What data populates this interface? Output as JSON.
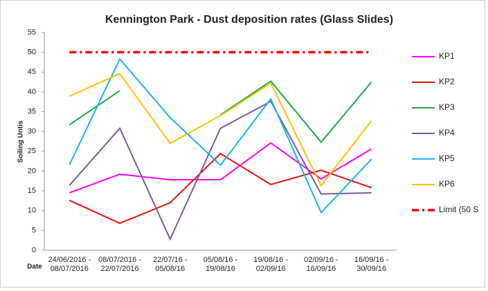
{
  "chart_data": {
    "type": "line",
    "title": "Kennington Park - Dust deposition rates (Glass Slides)",
    "y_label": "Soiling Untis",
    "x_label": "Date",
    "categories": [
      "24/06/2016 -\n08/07/2016",
      "08/07/2016 -\n22/07/2016",
      "22/07/16 -\n05/08/16",
      "05/08/16 -\n19/08/16",
      "19/08/16 -\n02/09/16",
      "02/09/16 -\n16/09/16",
      "16/09/16 -\n30/09/16"
    ],
    "series": [
      {
        "name": "KP1",
        "color": "#ff00ff",
        "values": [
          14.5,
          19.2,
          17.8,
          17.8,
          27.1,
          18,
          25.6
        ]
      },
      {
        "name": "KP2",
        "color": "#e3120b",
        "values": [
          12.6,
          6.8,
          12,
          24.4,
          16.6,
          20.2,
          15.8
        ]
      },
      {
        "name": "KP3",
        "color": "#1fa846",
        "values": [
          31.7,
          40.3,
          null,
          34.2,
          42.7,
          27.3,
          42.5
        ]
      },
      {
        "name": "KP4",
        "color": "#7a5a9a",
        "values": [
          16.4,
          30.8,
          2.8,
          30.8,
          37.6,
          14.2,
          14.5
        ]
      },
      {
        "name": "KP5",
        "color": "#1ab2e8",
        "values": [
          21.6,
          48.3,
          33.5,
          21.5,
          38.2,
          9.5,
          23
        ]
      },
      {
        "name": "KP6",
        "color": "#ffc000",
        "values": [
          38.9,
          44.6,
          27,
          34,
          42.2,
          16.3,
          32.7
        ]
      },
      {
        "name": "Limit (50 S",
        "color": "#ff0000",
        "dash": "dash-dot",
        "values": [
          50,
          50,
          50,
          50,
          50,
          50,
          50
        ]
      }
    ],
    "ylim": [
      0,
      55
    ],
    "yticks": [
      0,
      5,
      10,
      15,
      20,
      25,
      30,
      35,
      40,
      45,
      50,
      55
    ],
    "grid": false,
    "legend": "right"
  }
}
